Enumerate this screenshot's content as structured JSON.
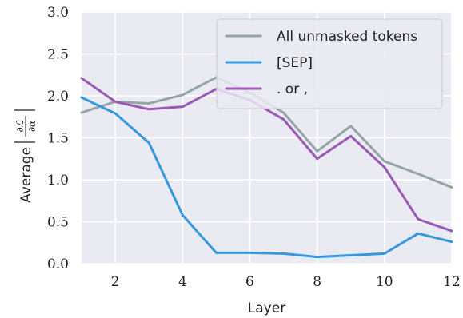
{
  "chart_data": {
    "type": "line",
    "title": "",
    "xlabel": "Layer",
    "ylabel_prefix": "Average",
    "ylabel_numerator": "∂ℒ",
    "ylabel_denominator": "∂α",
    "xlim": [
      1,
      12
    ],
    "ylim": [
      0.0,
      3.0
    ],
    "xticks": [
      2,
      4,
      6,
      8,
      10,
      12
    ],
    "xtick_labels": [
      "2",
      "4",
      "6",
      "8",
      "10",
      "12"
    ],
    "yticks": [
      0.0,
      0.5,
      1.0,
      1.5,
      2.0,
      2.5,
      3.0
    ],
    "ytick_labels": [
      "0.0",
      "0.5",
      "1.0",
      "1.5",
      "2.0",
      "2.5",
      "3.0"
    ],
    "grid": true,
    "background": "#eaeaf2",
    "legend_position": "upper-right",
    "x": [
      1,
      2,
      3,
      4,
      5,
      6,
      7,
      8,
      9,
      10,
      11,
      12
    ],
    "series": [
      {
        "name": "All unmasked tokens",
        "color": "#95a5a6",
        "values": [
          1.8,
          1.93,
          1.91,
          2.01,
          2.22,
          2.04,
          1.8,
          1.34,
          1.64,
          1.22,
          1.07,
          0.91
        ]
      },
      {
        "name": "[SEP]",
        "color": "#3498db",
        "values": [
          1.98,
          1.79,
          1.44,
          0.58,
          0.13,
          0.13,
          0.12,
          0.08,
          0.1,
          0.12,
          0.36,
          0.26
        ]
      },
      {
        "name": ". or ,",
        "color": "#9b59b6",
        "values": [
          2.21,
          1.93,
          1.84,
          1.87,
          2.08,
          1.95,
          1.72,
          1.25,
          1.52,
          1.15,
          0.53,
          0.39
        ]
      }
    ]
  }
}
